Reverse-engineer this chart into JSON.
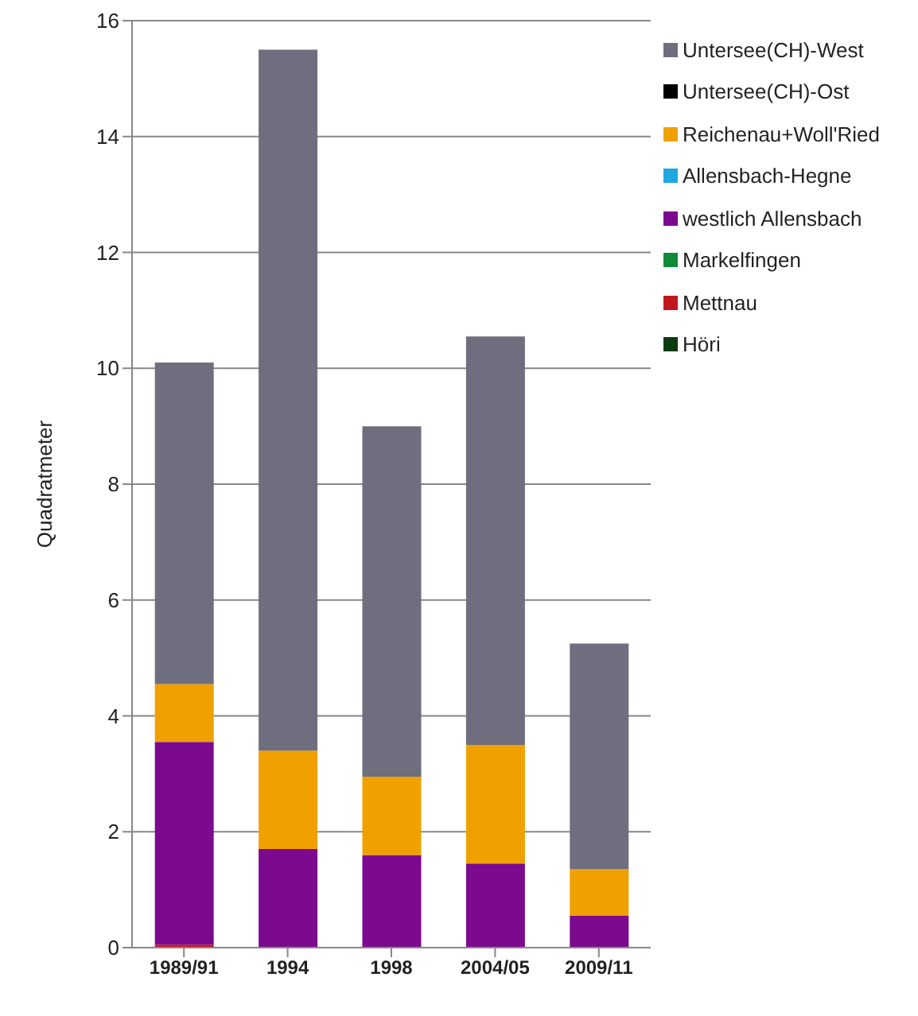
{
  "chart_data": {
    "type": "bar",
    "stacked": true,
    "ylabel": "Quadratmeter",
    "categories": [
      "1989/91",
      "1994",
      "1998",
      "2004/05",
      "2009/11"
    ],
    "ylim": [
      0,
      16
    ],
    "yticks": [
      0,
      2,
      4,
      6,
      8,
      10,
      12,
      14,
      16
    ],
    "grid": "y",
    "legend": "top right",
    "series": [
      {
        "name": "Höri",
        "color": "#0d3b10",
        "values": [
          0,
          0,
          0,
          0,
          0
        ]
      },
      {
        "name": "Mettnau",
        "color": "#c0181c",
        "values": [
          0.05,
          0,
          0,
          0,
          0
        ]
      },
      {
        "name": "Markelfingen",
        "color": "#108a3a",
        "values": [
          0,
          0,
          0,
          0,
          0
        ]
      },
      {
        "name": "westlich Allensbach",
        "color": "#7b0a8f",
        "values": [
          3.5,
          1.7,
          1.6,
          1.45,
          0.55
        ]
      },
      {
        "name": "Allensbach-Hegne",
        "color": "#1fa8e0",
        "values": [
          0,
          0,
          0,
          0,
          0
        ]
      },
      {
        "name": "Reichenau+Woll'Ried",
        "color": "#f0a000",
        "values": [
          1.0,
          1.7,
          1.35,
          2.05,
          0.8
        ]
      },
      {
        "name": "Untersee(CH)-Ost",
        "color": "#000000",
        "values": [
          0,
          0,
          0,
          0,
          0
        ]
      },
      {
        "name": "Untersee(CH)-West",
        "color": "#6f6e7e",
        "values": [
          5.55,
          12.1,
          6.05,
          7.05,
          3.9
        ]
      }
    ]
  }
}
